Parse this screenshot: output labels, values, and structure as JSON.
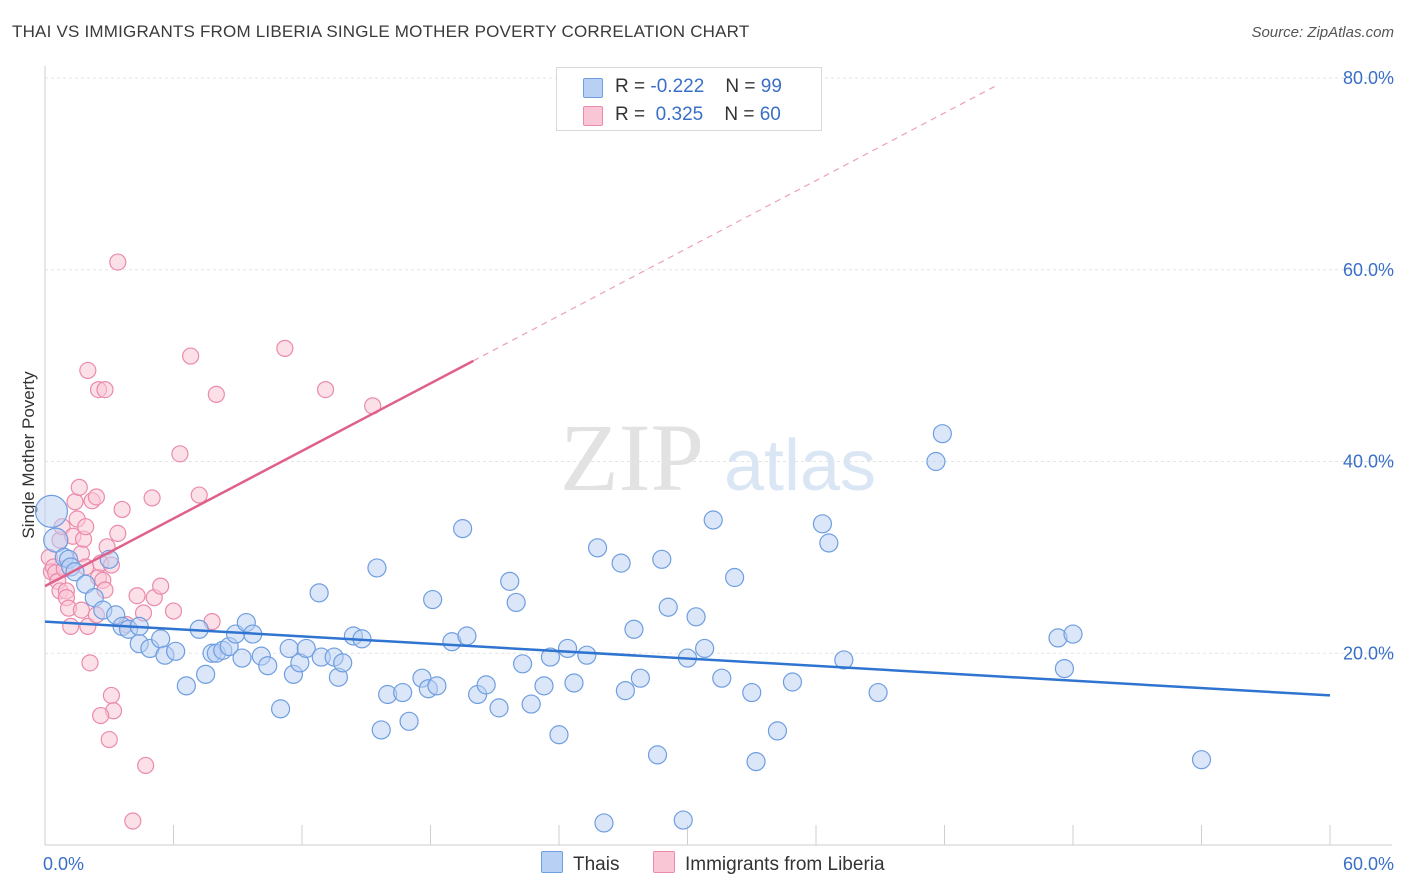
{
  "title": "THAI VS IMMIGRANTS FROM LIBERIA SINGLE MOTHER POVERTY CORRELATION CHART",
  "source": "Source: ZipAtlas.com",
  "watermark": {
    "zip": "ZIP",
    "atlas": "atlas"
  },
  "legend": {
    "thai": {
      "r_label": "R =",
      "r_value": "-0.222",
      "n_label": "N =",
      "n_value": "99"
    },
    "liberia": {
      "r_label": "R =",
      "r_value": "0.325",
      "n_label": "N =",
      "n_value": "60"
    }
  },
  "bottom_legend": {
    "thai": "Thais",
    "liberia": "Immigrants from Liberia"
  },
  "colors": {
    "thai_fill": "#b7d0f3",
    "thai_stroke": "#6f9ee0",
    "thai_line": "#2f74d0",
    "liberia_fill": "#f9c6d6",
    "liberia_stroke": "#eb8aab",
    "liberia_line": "#e0608c",
    "axis_label": "#3a6fc8",
    "grid": "#e3e3e3"
  },
  "chart_data": {
    "type": "scatter",
    "title": "THAI VS IMMIGRANTS FROM LIBERIA SINGLE MOTHER POVERTY CORRELATION CHART",
    "xlabel": "",
    "ylabel": "Single Mother Poverty",
    "xlim": [
      0,
      60
    ],
    "ylim": [
      0,
      80
    ],
    "x_tick_labels": [
      {
        "value": 0,
        "label": "0.0%"
      },
      {
        "value": 60,
        "label": "60.0%"
      }
    ],
    "y_tick_labels": [
      {
        "value": 20,
        "label": "20.0%"
      },
      {
        "value": 40,
        "label": "40.0%"
      },
      {
        "value": 60,
        "label": "60.0%"
      },
      {
        "value": 80,
        "label": "80.0%"
      }
    ],
    "series": [
      {
        "name": "Thais",
        "r": -0.222,
        "n": 99,
        "trend": {
          "x0": 0,
          "y0": 23.3,
          "x1": 60,
          "y1": 15.6
        },
        "points": [
          [
            0.3,
            34.8
          ],
          [
            0.5,
            31.8
          ],
          [
            0.9,
            30.0
          ],
          [
            1.1,
            29.8
          ],
          [
            1.2,
            29.0
          ],
          [
            1.4,
            28.5
          ],
          [
            1.9,
            27.2
          ],
          [
            3.0,
            29.8
          ],
          [
            2.3,
            25.8
          ],
          [
            2.7,
            24.5
          ],
          [
            3.3,
            24.0
          ],
          [
            3.6,
            22.8
          ],
          [
            3.9,
            22.5
          ],
          [
            4.4,
            22.8
          ],
          [
            4.4,
            21.0
          ],
          [
            4.9,
            20.5
          ],
          [
            5.4,
            21.5
          ],
          [
            5.6,
            19.8
          ],
          [
            6.1,
            20.2
          ],
          [
            6.6,
            16.6
          ],
          [
            7.2,
            22.5
          ],
          [
            7.5,
            17.8
          ],
          [
            7.8,
            20.0
          ],
          [
            8.0,
            20.0
          ],
          [
            8.3,
            20.3
          ],
          [
            8.6,
            20.7
          ],
          [
            8.9,
            22.0
          ],
          [
            9.2,
            19.5
          ],
          [
            9.4,
            23.2
          ],
          [
            9.7,
            22.0
          ],
          [
            10.1,
            19.7
          ],
          [
            10.4,
            18.7
          ],
          [
            11.0,
            14.2
          ],
          [
            11.4,
            20.5
          ],
          [
            11.6,
            17.8
          ],
          [
            11.9,
            19.0
          ],
          [
            12.2,
            20.5
          ],
          [
            12.8,
            26.3
          ],
          [
            12.9,
            19.6
          ],
          [
            13.5,
            19.6
          ],
          [
            13.7,
            17.5
          ],
          [
            13.9,
            19.0
          ],
          [
            14.4,
            21.8
          ],
          [
            14.8,
            21.5
          ],
          [
            15.5,
            28.9
          ],
          [
            15.7,
            12.0
          ],
          [
            16.0,
            15.7
          ],
          [
            16.7,
            15.9
          ],
          [
            17.0,
            12.9
          ],
          [
            17.6,
            17.4
          ],
          [
            17.9,
            16.3
          ],
          [
            18.1,
            25.6
          ],
          [
            18.3,
            16.6
          ],
          [
            19.0,
            21.2
          ],
          [
            19.5,
            33.0
          ],
          [
            19.7,
            21.8
          ],
          [
            20.2,
            15.7
          ],
          [
            20.6,
            16.7
          ],
          [
            21.2,
            14.3
          ],
          [
            21.7,
            27.5
          ],
          [
            22.0,
            25.3
          ],
          [
            22.3,
            18.9
          ],
          [
            22.7,
            14.7
          ],
          [
            23.3,
            16.6
          ],
          [
            23.6,
            19.6
          ],
          [
            24.0,
            11.5
          ],
          [
            24.4,
            20.5
          ],
          [
            24.7,
            16.9
          ],
          [
            25.3,
            19.8
          ],
          [
            25.8,
            31.0
          ],
          [
            26.1,
            2.3
          ],
          [
            26.9,
            29.4
          ],
          [
            27.1,
            16.1
          ],
          [
            27.5,
            22.5
          ],
          [
            27.8,
            17.4
          ],
          [
            28.6,
            9.4
          ],
          [
            28.8,
            29.8
          ],
          [
            29.1,
            24.8
          ],
          [
            29.8,
            2.6
          ],
          [
            30.0,
            19.5
          ],
          [
            30.4,
            23.8
          ],
          [
            30.8,
            20.5
          ],
          [
            31.2,
            33.9
          ],
          [
            31.6,
            17.4
          ],
          [
            32.2,
            27.9
          ],
          [
            33.0,
            15.9
          ],
          [
            33.2,
            8.7
          ],
          [
            34.2,
            11.9
          ],
          [
            34.9,
            17.0
          ],
          [
            36.3,
            33.5
          ],
          [
            36.6,
            31.5
          ],
          [
            37.3,
            19.3
          ],
          [
            38.9,
            15.9
          ],
          [
            41.6,
            40.0
          ],
          [
            41.9,
            42.9
          ],
          [
            47.3,
            21.6
          ],
          [
            47.6,
            18.4
          ],
          [
            48.0,
            22.0
          ],
          [
            54.0,
            8.9
          ]
        ]
      },
      {
        "name": "Immigrants from Liberia",
        "r": 0.325,
        "n": 60,
        "trend": {
          "x0": 0,
          "y0": 27.0,
          "x1": 20.0,
          "y1": 50.5,
          "dash_to_x": 44.5,
          "dash_to_y": 79.3
        },
        "points": [
          [
            0.2,
            30.0
          ],
          [
            0.3,
            28.5
          ],
          [
            0.4,
            29.0
          ],
          [
            0.5,
            28.4
          ],
          [
            0.6,
            27.5
          ],
          [
            0.7,
            26.5
          ],
          [
            0.7,
            31.8
          ],
          [
            0.8,
            33.2
          ],
          [
            0.9,
            28.8
          ],
          [
            1.0,
            26.5
          ],
          [
            1.0,
            25.8
          ],
          [
            1.1,
            24.7
          ],
          [
            1.2,
            22.8
          ],
          [
            1.3,
            32.2
          ],
          [
            1.4,
            35.8
          ],
          [
            1.5,
            34.0
          ],
          [
            1.6,
            37.3
          ],
          [
            1.7,
            30.4
          ],
          [
            1.8,
            31.9
          ],
          [
            1.9,
            33.2
          ],
          [
            1.9,
            29.0
          ],
          [
            2.0,
            22.8
          ],
          [
            2.1,
            19.0
          ],
          [
            2.2,
            35.9
          ],
          [
            2.4,
            36.3
          ],
          [
            2.5,
            27.9
          ],
          [
            2.6,
            29.4
          ],
          [
            2.7,
            27.6
          ],
          [
            2.8,
            26.6
          ],
          [
            2.9,
            31.1
          ],
          [
            3.1,
            29.2
          ],
          [
            2.0,
            49.5
          ],
          [
            2.5,
            47.5
          ],
          [
            2.8,
            47.5
          ],
          [
            3.1,
            15.6
          ],
          [
            3.2,
            14.0
          ],
          [
            3.4,
            60.8
          ],
          [
            3.4,
            32.5
          ],
          [
            3.6,
            35.0
          ],
          [
            3.8,
            23.0
          ],
          [
            4.1,
            2.5
          ],
          [
            4.3,
            26.0
          ],
          [
            4.6,
            24.2
          ],
          [
            4.7,
            8.3
          ],
          [
            5.0,
            36.2
          ],
          [
            5.1,
            25.8
          ],
          [
            5.4,
            27.0
          ],
          [
            6.0,
            24.4
          ],
          [
            6.3,
            40.8
          ],
          [
            6.8,
            51.0
          ],
          [
            7.2,
            36.5
          ],
          [
            7.8,
            23.3
          ],
          [
            8.0,
            47.0
          ],
          [
            11.2,
            51.8
          ],
          [
            13.1,
            47.5
          ],
          [
            15.3,
            45.8
          ],
          [
            2.6,
            13.5
          ],
          [
            3.0,
            11.0
          ],
          [
            1.7,
            24.5
          ],
          [
            2.4,
            24.0
          ]
        ]
      }
    ]
  }
}
